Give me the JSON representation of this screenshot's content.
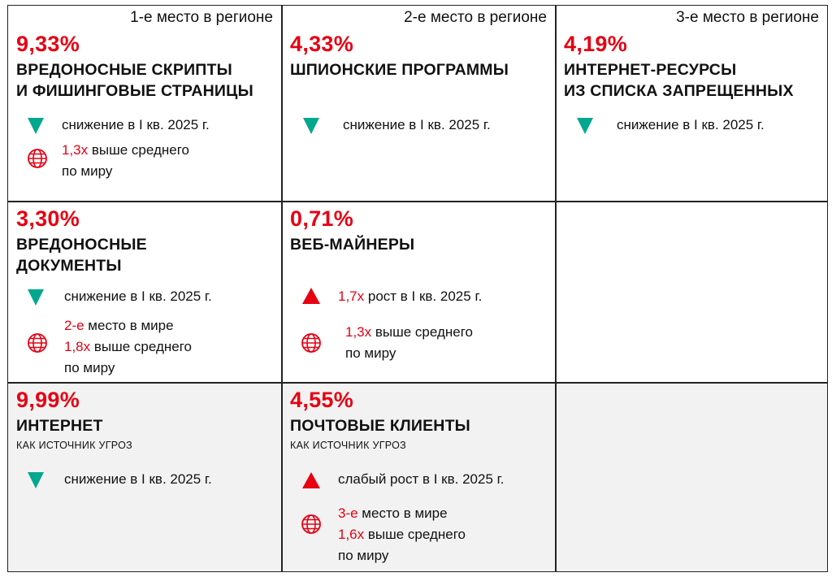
{
  "cells": {
    "c1": {
      "rank": "1-е место в регионе",
      "percent": "9,33%",
      "title_line1": "ВРЕДОНОСНЫЕ СКРИПТЫ",
      "title_line2": "И ФИШИНГОВЫЕ СТРАНИЦЫ",
      "trend": "снижение в I кв. 2025 г.",
      "world_highlight": "1,3х",
      "world_text1": " выше среднего",
      "world_text2": "по миру"
    },
    "c2": {
      "rank": "2-е место в регионе",
      "percent": "4,33%",
      "title_line1": "ШПИОНСКИЕ ПРОГРАММЫ",
      "trend": "снижение в I кв. 2025 г."
    },
    "c3": {
      "rank": "3-е место в регионе",
      "percent": "4,19%",
      "title_line1": "ИНТЕРНЕТ-РЕСУРСЫ",
      "title_line2": "ИЗ СПИСКА ЗАПРЕЩЕННЫХ",
      "trend": "снижение в I кв. 2025 г."
    },
    "c4": {
      "percent": "3,30%",
      "title_line1": "ВРЕДОНОСНЫЕ",
      "title_line2": "ДОКУМЕНТЫ",
      "trend": "снижение в I кв. 2025 г.",
      "world_highlight1": "2-е",
      "world_text1": " место в мире",
      "world_highlight2": "1,8х",
      "world_text2": " выше среднего",
      "world_text3": "по миру"
    },
    "c5": {
      "percent": "0,71%",
      "title_line1": "ВЕБ-МАЙНЕРЫ",
      "trend_highlight": "1,7х",
      "trend_text": " рост в I кв. 2025 г.",
      "world_highlight": "1,3х",
      "world_text1": " выше среднего",
      "world_text2": "по миру"
    },
    "c7": {
      "percent": "9,99%",
      "title_line1": "ИНТЕРНЕТ",
      "subtitle": "КАК ИСТОЧНИК УГРОЗ",
      "trend": "снижение в I кв. 2025 г."
    },
    "c8": {
      "percent": "4,55%",
      "title_line1": "ПОЧТОВЫЕ КЛИЕНТЫ",
      "subtitle": "КАК ИСТОЧНИК УГРОЗ",
      "trend": "слабый рост в I кв. 2025 г.",
      "world_highlight1": "3-е",
      "world_text1": " место в мире",
      "world_highlight2": "1,6х",
      "world_text2": " выше среднего",
      "world_text3": "по миру"
    }
  },
  "colors": {
    "accent_red": "#e60012",
    "trend_down_teal": "#00a88e",
    "bottom_row_bg": "#f2f2f2",
    "border": "#222222"
  },
  "icons": {
    "trend_down": "triangle-down-icon",
    "trend_up": "triangle-up-icon",
    "world": "globe-icon"
  }
}
